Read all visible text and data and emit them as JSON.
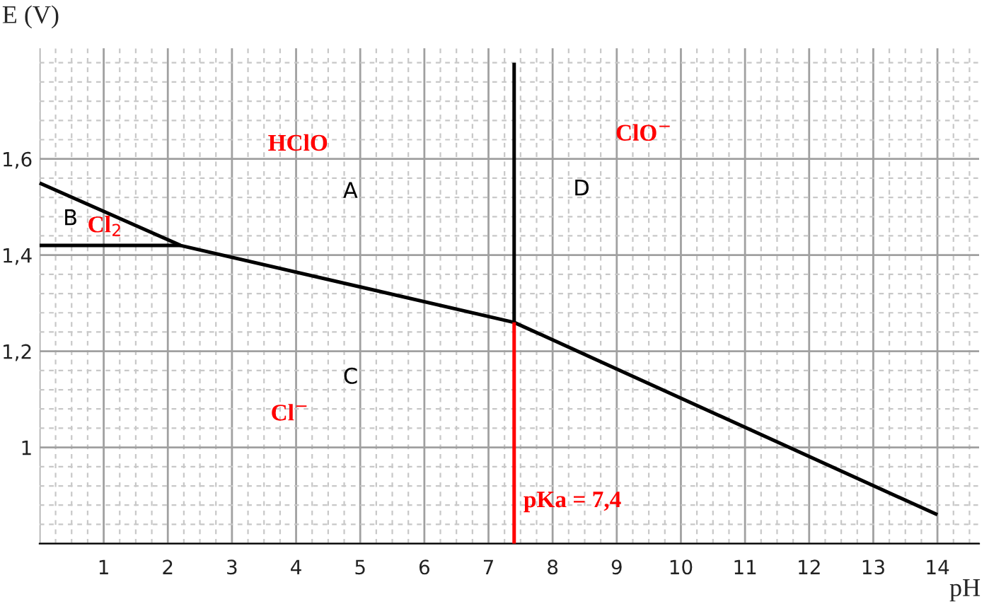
{
  "chart_data": {
    "type": "line",
    "xlabel": "pH",
    "ylabel": "E (V)",
    "xlim": [
      0,
      14.65
    ],
    "ylim": [
      0.8,
      1.83
    ],
    "xticks": [
      {
        "value": 0,
        "label": null
      },
      1,
      2,
      3,
      4,
      5,
      6,
      7,
      8,
      9,
      10,
      11,
      12,
      13,
      14
    ],
    "yticks": [
      {
        "value": 0.8,
        "label": null
      },
      1,
      {
        "value": 1.2,
        "label": "1,2"
      },
      {
        "value": 1.4,
        "label": "1,4"
      },
      {
        "value": 1.6,
        "label": "1,6"
      }
    ],
    "grid": true,
    "legend": false,
    "marker": "none",
    "line_style": "solid",
    "series": [
      {
        "color": "#000000",
        "x": [
          0,
          2.2
        ],
        "values": [
          1.42,
          1.42
        ]
      },
      {
        "color": "#000000",
        "x": [
          0,
          2.2,
          7.4,
          14
        ],
        "values": [
          1.55,
          1.42,
          1.26,
          0.86
        ]
      },
      {
        "color": "#000000",
        "x": [
          7.4,
          7.4
        ],
        "values": [
          1.26,
          1.8
        ]
      },
      {
        "color": "#ff0000",
        "x": [
          7.4,
          7.4
        ],
        "values": [
          0.8,
          1.26
        ]
      }
    ],
    "annotations": [
      "HClO",
      "ClO$^{−}$",
      "Cl$_{2}$",
      "Cl$^{−}$",
      "A",
      "B",
      "C",
      "D",
      "pKa = 7,4"
    ]
  }
}
